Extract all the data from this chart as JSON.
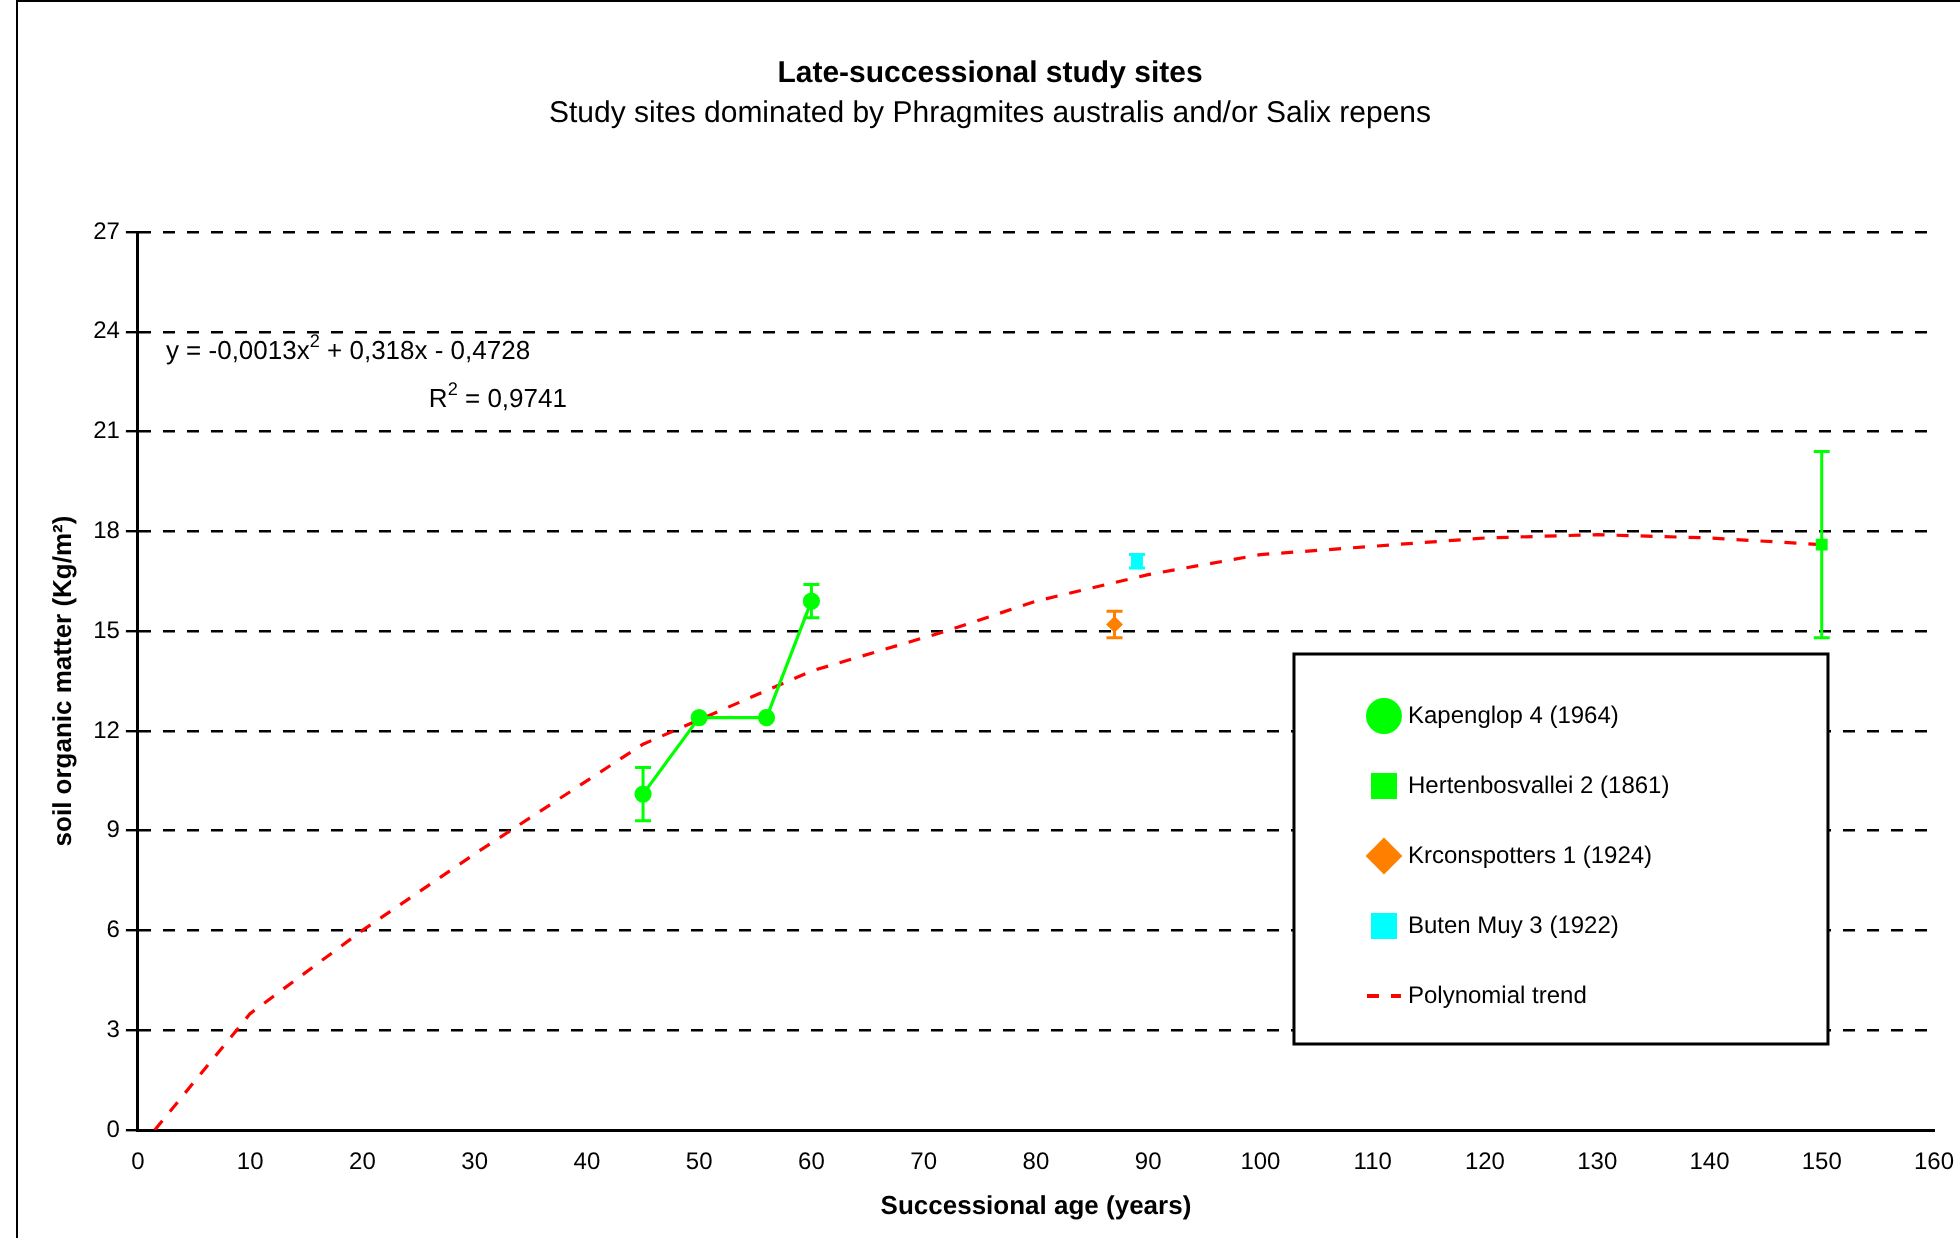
{
  "chart_data": {
    "type": "scatter",
    "title": "Late-successional study sites",
    "subtitle": "Study sites dominated by Phragmites australis and/or Salix repens",
    "xlabel": "Successional age (years)",
    "ylabel": "soil organic matter (Kg/m²)",
    "xlim": [
      0,
      160
    ],
    "xticks": [
      0,
      10,
      20,
      30,
      40,
      50,
      60,
      70,
      80,
      90,
      100,
      110,
      120,
      130,
      140,
      150,
      160
    ],
    "ylim": [
      0,
      27
    ],
    "yticks": [
      0,
      3,
      6,
      9,
      12,
      15,
      18,
      21,
      24,
      27
    ],
    "grid": "y",
    "legend": "bottom right",
    "annotations": [
      "y = -0,0013x$^{2}$ + 0,318x - 0,4728",
      "R$^{2}$ = 0,9741"
    ],
    "series": [
      {
        "name": "Kapenglop 4 (1964)",
        "type": "line",
        "marker": "circle",
        "color": "#00ff00",
        "x": [
          45,
          50,
          56,
          60
        ],
        "values": [
          10.1,
          12.4,
          12.4,
          15.9
        ],
        "errors": [
          0.8,
          null,
          null,
          0.5
        ]
      },
      {
        "name": "Hertenbosvallei 2 (1861)",
        "type": "scatter",
        "marker": "square",
        "color": "#00ff00",
        "x": [
          150
        ],
        "values": [
          17.6
        ],
        "errors": [
          [
            14.8,
            20.4
          ]
        ]
      },
      {
        "name": "Krconspotters 1 (1924)",
        "type": "scatter",
        "marker": "diamond",
        "color": "#ff8000",
        "x": [
          87
        ],
        "values": [
          15.2
        ],
        "errors": [
          0.4
        ]
      },
      {
        "name": "Buten Muy 3 (1922)",
        "type": "scatter",
        "marker": "square",
        "color": "#00ffff",
        "x": [
          89
        ],
        "values": [
          17.1
        ],
        "errors": [
          0.2
        ]
      },
      {
        "name": "Polynomial trend",
        "type": "line",
        "marker": "none",
        "line_style": "dashed",
        "color": "#ff0000",
        "x": [
          1.5,
          10,
          20,
          30,
          45,
          60,
          72,
          80,
          90,
          100,
          120,
          130,
          140,
          150
        ],
        "values": [
          0,
          3.5,
          6.0,
          8.3,
          11.6,
          13.8,
          15.0,
          15.9,
          16.7,
          17.3,
          17.8,
          17.9,
          17.8,
          17.6
        ]
      }
    ]
  }
}
